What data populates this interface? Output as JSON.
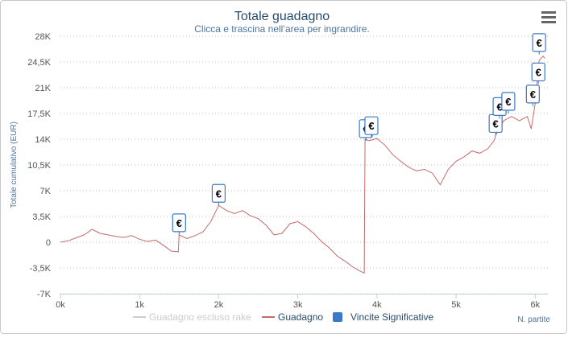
{
  "chart_data": {
    "type": "line",
    "title": "Totale guadagno",
    "subtitle": "Clicca e trascina nell’area per ingrandire.",
    "y_label": "Totale cumulativo (EUR)",
    "x_label": "N. partite",
    "flag_text": "€",
    "xlim": [
      0,
      6160
    ],
    "ylim": [
      -7000,
      28000
    ],
    "xticks": [
      {
        "value": 0,
        "label": "0k"
      },
      {
        "value": 1000,
        "label": "1k"
      },
      {
        "value": 2000,
        "label": "2k"
      },
      {
        "value": 3000,
        "label": "3k"
      },
      {
        "value": 4000,
        "label": "4k"
      },
      {
        "value": 5000,
        "label": "5k"
      },
      {
        "value": 6000,
        "label": "6k"
      }
    ],
    "yticks": [
      {
        "value": 28000,
        "label": "28K"
      },
      {
        "value": 24500,
        "label": "24,5K"
      },
      {
        "value": 21000,
        "label": "21K"
      },
      {
        "value": 17500,
        "label": "17,5K"
      },
      {
        "value": 14000,
        "label": "14K"
      },
      {
        "value": 10500,
        "label": "10,5K"
      },
      {
        "value": 7000,
        "label": "7K"
      },
      {
        "value": 3500,
        "label": "3,5K"
      },
      0,
      {
        "value": -3500,
        "label": "-3,5K"
      },
      {
        "value": -7000,
        "label": "-7K"
      }
    ],
    "grid": true,
    "series": [
      {
        "name": "Guadagno escluso rake",
        "color": "#cccccc",
        "visible": false,
        "x": [],
        "values": []
      },
      {
        "name": "Guadagno",
        "color": "#c46a6a",
        "visible": true,
        "x": [
          0,
          100,
          200,
          300,
          400,
          500,
          600,
          700,
          800,
          900,
          1000,
          1100,
          1200,
          1300,
          1400,
          1490,
          1500,
          1600,
          1700,
          1800,
          1900,
          2000,
          2100,
          2200,
          2300,
          2400,
          2500,
          2600,
          2700,
          2800,
          2900,
          3000,
          3100,
          3200,
          3300,
          3400,
          3500,
          3600,
          3700,
          3800,
          3840,
          3850,
          3900,
          4000,
          4100,
          4200,
          4300,
          4400,
          4500,
          4600,
          4700,
          4800,
          4900,
          5000,
          5100,
          5200,
          5300,
          5400,
          5480,
          5500,
          5600,
          5700,
          5800,
          5900,
          5950,
          6000,
          6050,
          6100,
          6120
        ],
        "values": [
          0,
          200,
          600,
          1000,
          1750,
          1200,
          1000,
          800,
          650,
          900,
          400,
          100,
          300,
          -400,
          -1200,
          -1300,
          1000,
          500,
          900,
          1400,
          2800,
          5000,
          4300,
          3900,
          4300,
          3600,
          3200,
          2300,
          1000,
          1200,
          2500,
          2800,
          2100,
          1200,
          100,
          -800,
          -1900,
          -2600,
          -3400,
          -4000,
          -4200,
          14000,
          13800,
          14100,
          13200,
          11900,
          11000,
          10200,
          9700,
          9900,
          9400,
          7800,
          9900,
          11000,
          11600,
          12400,
          12100,
          12700,
          13800,
          14500,
          16500,
          17100,
          16500,
          17100,
          15400,
          18900,
          24700,
          25300,
          25000
        ]
      },
      {
        "name": "Vincite Significative",
        "color": "#3c78c8",
        "visible": true,
        "x": [
          1500,
          2000,
          3860,
          3930,
          5500,
          5550,
          5660,
          5970,
          6040,
          6050
        ],
        "values": [
          1000,
          5000,
          13800,
          14200,
          14500,
          16800,
          17500,
          18500,
          21500,
          25500
        ]
      }
    ]
  }
}
